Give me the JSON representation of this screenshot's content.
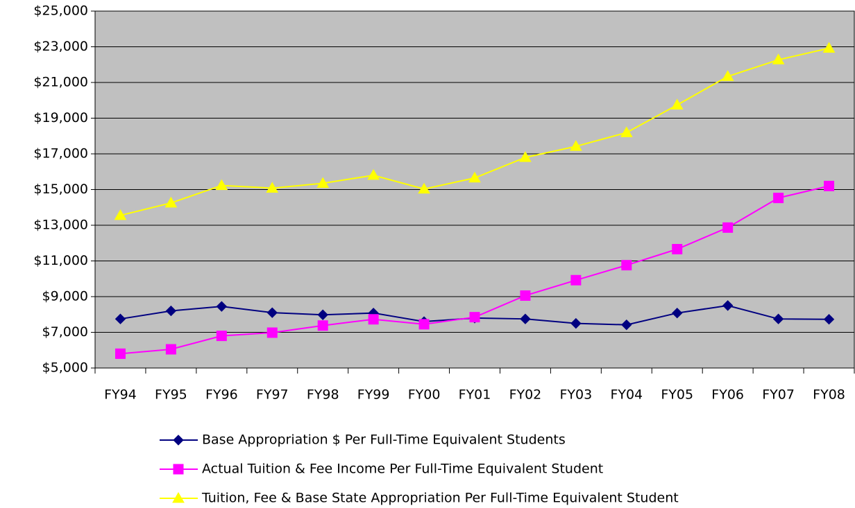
{
  "chart_data": {
    "type": "line",
    "categories": [
      "FY94",
      "FY95",
      "FY96",
      "FY97",
      "FY98",
      "FY99",
      "FY00",
      "FY01",
      "FY02",
      "FY03",
      "FY04",
      "FY05",
      "FY06",
      "FY07",
      "FY08"
    ],
    "series": [
      {
        "name": "Base Appropriation $ Per Full-Time Equivalent Students",
        "color": "#000080",
        "marker": "diamond",
        "values": [
          7750,
          8200,
          8450,
          8100,
          7980,
          8080,
          7600,
          7800,
          7750,
          7500,
          7420,
          8080,
          8500,
          7750,
          7730
        ]
      },
      {
        "name": "Actual Tuition & Fee Income Per Full-Time Equivalent Student",
        "color": "#ff00ff",
        "marker": "square",
        "values": [
          5800,
          6050,
          6800,
          6980,
          7380,
          7730,
          7450,
          7850,
          9060,
          9920,
          10760,
          11660,
          12870,
          14530,
          15200
        ]
      },
      {
        "name": "Tuition, Fee & Base State  Appropriation Per Full-Time Equivalent Student",
        "color": "#ffff00",
        "marker": "triangle",
        "values": [
          13550,
          14250,
          15230,
          15080,
          15350,
          15800,
          15030,
          15650,
          16800,
          17420,
          18190,
          19740,
          21340,
          22270,
          22920
        ]
      }
    ],
    "ylim": [
      5000,
      25000
    ],
    "yticks": [
      {
        "value": 5000,
        "label": "$5,000"
      },
      {
        "value": 7000,
        "label": "$7,000"
      },
      {
        "value": 9000,
        "label": "$9,000"
      },
      {
        "value": 11000,
        "label": "$11,000"
      },
      {
        "value": 13000,
        "label": "$13,000"
      },
      {
        "value": 15000,
        "label": "$15,000"
      },
      {
        "value": 17000,
        "label": "$17,000"
      },
      {
        "value": 19000,
        "label": "$19,000"
      },
      {
        "value": 21000,
        "label": "$21,000"
      },
      {
        "value": 23000,
        "label": "$23,000"
      },
      {
        "value": 25000,
        "label": "$25,000"
      }
    ],
    "grid": true,
    "plot_background": "#c0c0c0",
    "legend": "bottom"
  }
}
